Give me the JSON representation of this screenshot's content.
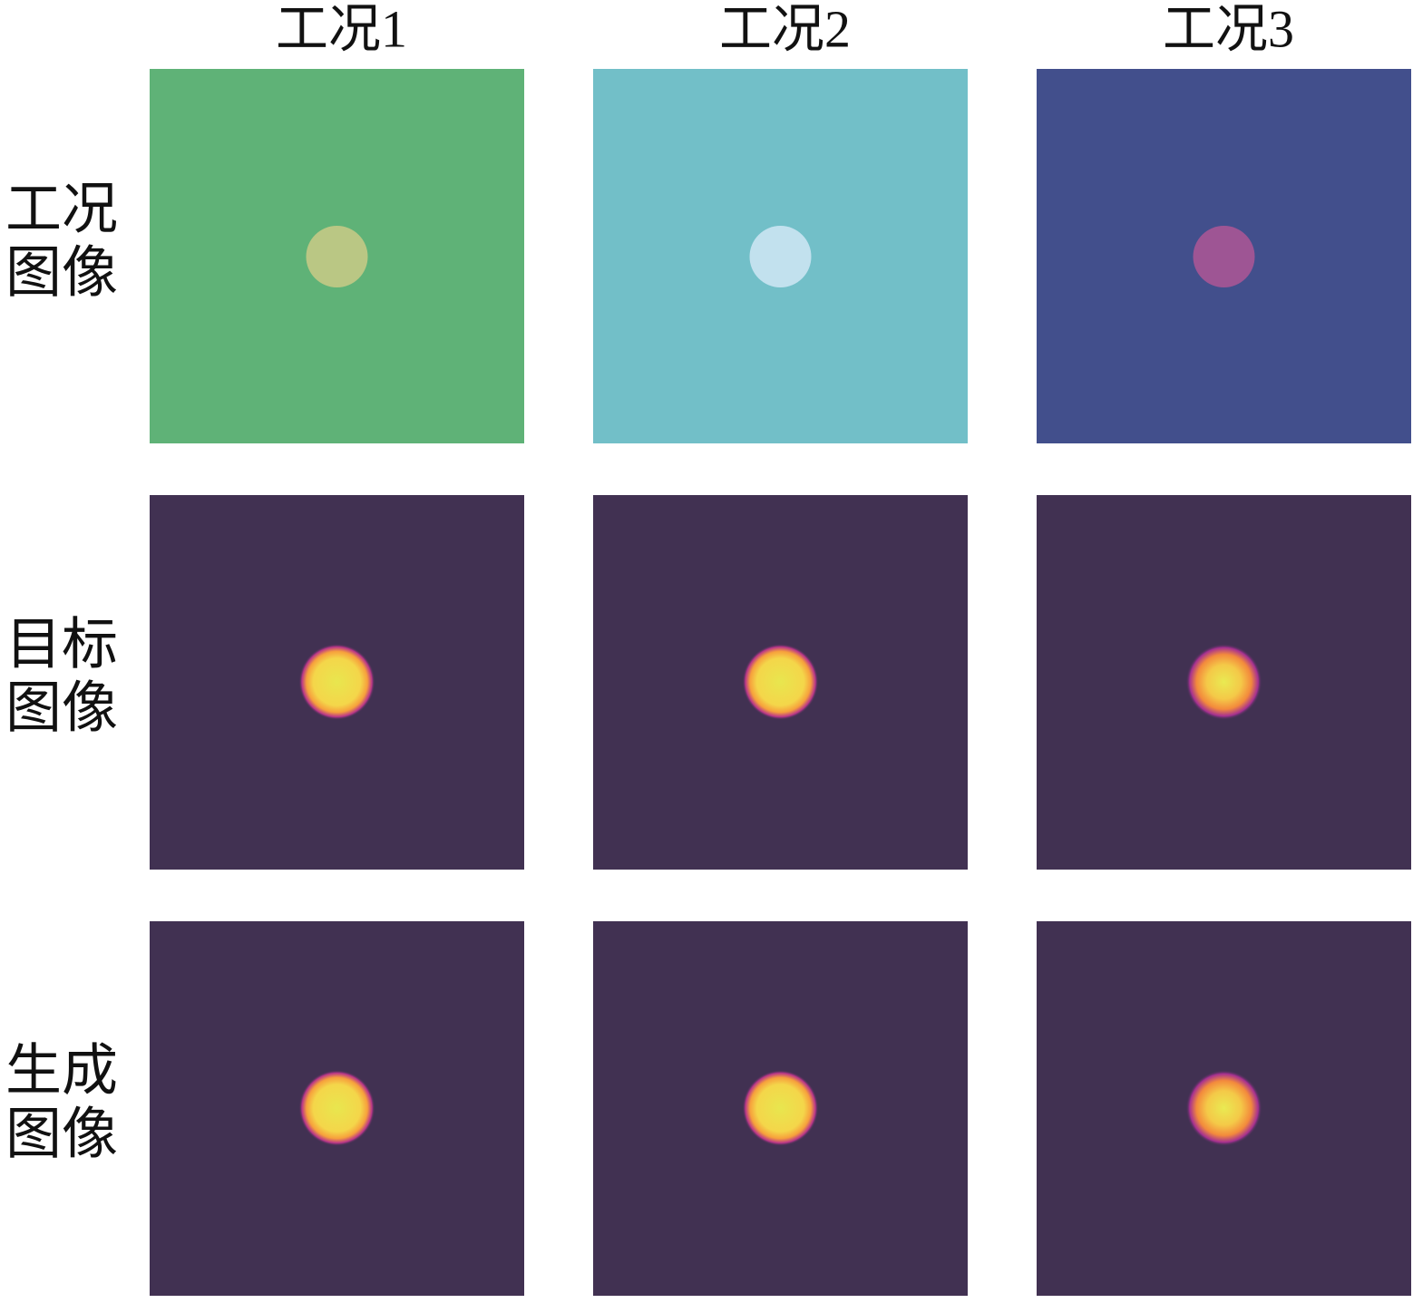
{
  "columns": [
    {
      "label": "工况1"
    },
    {
      "label": "工况2"
    },
    {
      "label": "工况3"
    }
  ],
  "rows": [
    {
      "label_lines": [
        "工况",
        "图像"
      ]
    },
    {
      "label_lines": [
        "目标",
        "图像"
      ]
    },
    {
      "label_lines": [
        "生成",
        "图像"
      ]
    }
  ]
}
